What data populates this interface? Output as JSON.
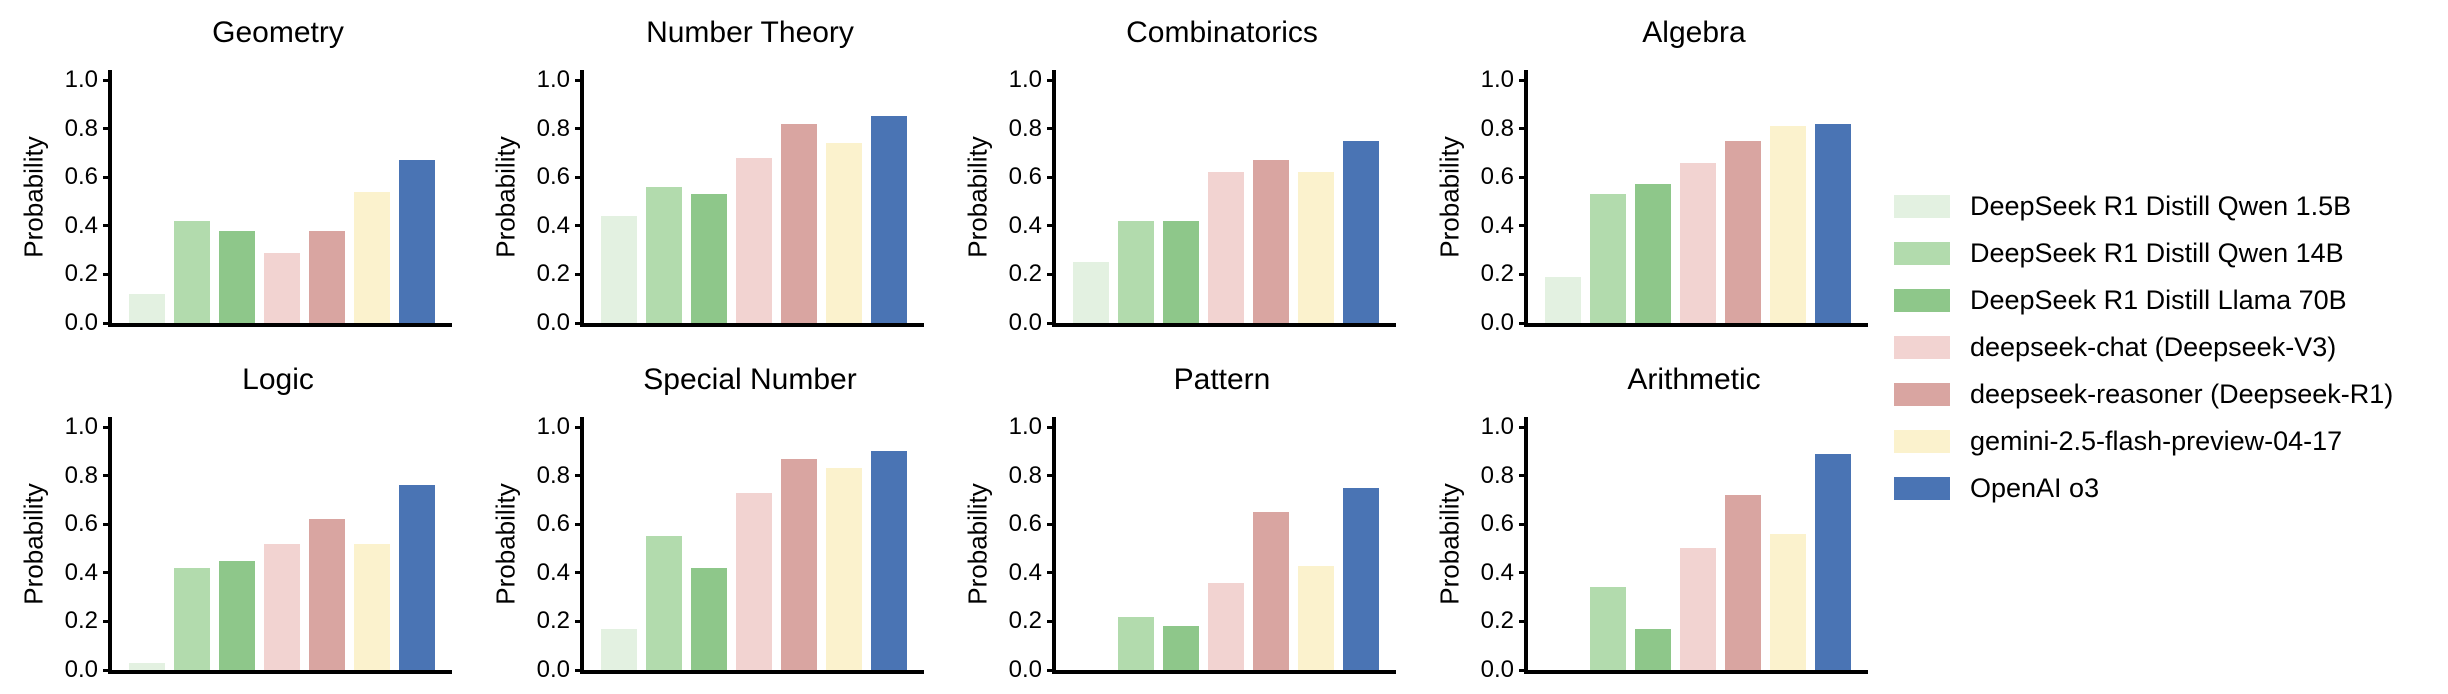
{
  "figure": {
    "ylabel": "Probability",
    "ytick_labels": [
      "0.0",
      "0.2",
      "0.4",
      "0.6",
      "0.8",
      "1.0"
    ],
    "ytick_values": [
      0,
      0.2,
      0.4,
      0.6,
      0.8,
      1.0
    ]
  },
  "chart_data": {
    "type": "bar",
    "grid_layout": "2 rows x 4 cols",
    "ylabel": "Probability",
    "ylim": [
      0,
      1
    ],
    "grid": false,
    "legend_position": "right-center",
    "series": [
      {
        "name": "DeepSeek R1 Distill Qwen 1.5B",
        "color": "#e3f1e1"
      },
      {
        "name": "DeepSeek R1 Distill Qwen 14B",
        "color": "#b2dbad"
      },
      {
        "name": "DeepSeek R1 Distill Llama 70B",
        "color": "#8ec78a"
      },
      {
        "name": "deepseek-chat (Deepseek-V3)",
        "color": "#f2d3d1"
      },
      {
        "name": "deepseek-reasoner (Deepseek-R1)",
        "color": "#d9a5a1"
      },
      {
        "name": "gemini-2.5-flash-preview-04-17",
        "color": "#fbf2cd"
      },
      {
        "name": "OpenAI o3",
        "color": "#4a74b4"
      }
    ],
    "subplots": [
      {
        "title": "Geometry",
        "values": [
          0.12,
          0.42,
          0.38,
          0.29,
          0.38,
          0.54,
          0.67
        ]
      },
      {
        "title": "Number Theory",
        "values": [
          0.44,
          0.56,
          0.53,
          0.68,
          0.82,
          0.74,
          0.85
        ]
      },
      {
        "title": "Combinatorics",
        "values": [
          0.25,
          0.42,
          0.42,
          0.62,
          0.67,
          0.62,
          0.75
        ]
      },
      {
        "title": "Algebra",
        "values": [
          0.19,
          0.53,
          0.57,
          0.66,
          0.75,
          0.81,
          0.82
        ]
      },
      {
        "title": "Logic",
        "values": [
          0.03,
          0.42,
          0.45,
          0.52,
          0.62,
          0.52,
          0.76
        ]
      },
      {
        "title": "Special Number",
        "values": [
          0.17,
          0.55,
          0.42,
          0.73,
          0.87,
          0.83,
          0.9
        ]
      },
      {
        "title": "Pattern",
        "values": [
          0.0,
          0.22,
          0.18,
          0.36,
          0.65,
          0.43,
          0.75
        ]
      },
      {
        "title": "Arithmetic",
        "values": [
          0.0,
          0.34,
          0.17,
          0.5,
          0.72,
          0.56,
          0.89
        ]
      }
    ]
  }
}
